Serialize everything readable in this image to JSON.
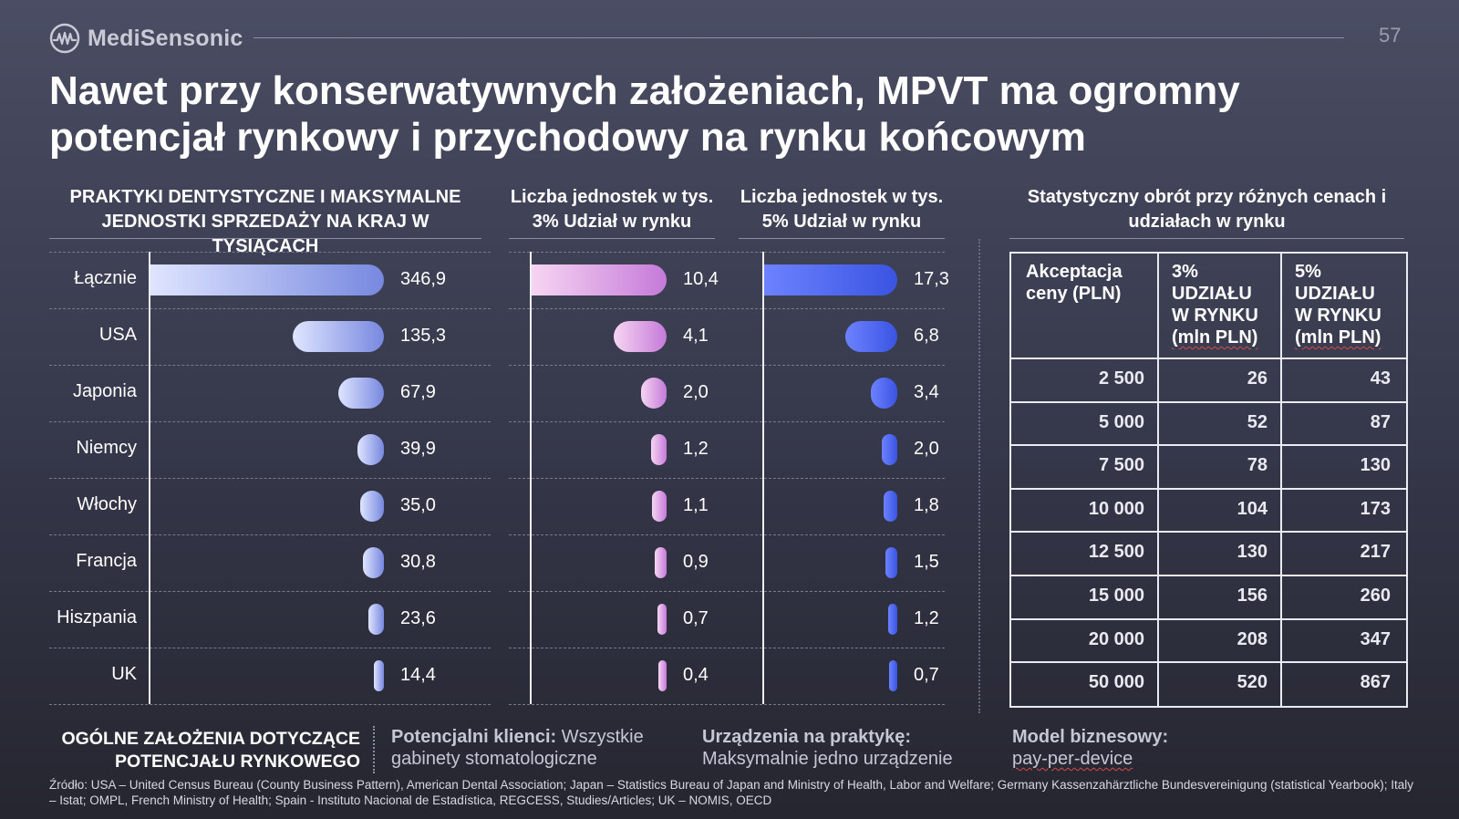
{
  "brand": {
    "name": "MediSensonic",
    "logo_icon": "ecg-circle-logo-icon"
  },
  "page_number": "57",
  "title": "Nawet przy konserwatywnych założeniach, MPVT ma ogromny potencjał rynkowy i przychodowy na rynku końcowym",
  "sections": {
    "practices_header": "PRAKTYKI DENTYSTYCZNE I MAKSYMALNE JEDNOSTKI SPRZEDAŻY NA KRAJ W TYSIĄCACH",
    "share3_header": "Liczba jednostek w tys. 3% Udział w rynku",
    "share5_header": "Liczba jednostek w tys. 5% Udział w rynku",
    "turnover_header": "Statystyczny obrót przy różnych cenach i udziałach w rynku"
  },
  "chart_data": [
    {
      "type": "bar",
      "orientation": "horizontal",
      "title": "PRAKTYKI DENTYSTYCZNE I MAKSYMALNE JEDNOSTKI SPRZEDAŻY NA KRAJ W TYSIĄCACH",
      "categories": [
        "Łącznie",
        "USA",
        "Japonia",
        "Niemcy",
        "Włochy",
        "Francja",
        "Hiszpania",
        "UK"
      ],
      "values": [
        346.9,
        135.3,
        67.9,
        39.9,
        35.0,
        30.8,
        23.6,
        14.4
      ],
      "labels": [
        "346,9",
        "135,3",
        "67,9",
        "39,9",
        "35,0",
        "30,8",
        "23,6",
        "14,4"
      ],
      "color_start": "#dfe5ff",
      "color_end": "#7788df"
    },
    {
      "type": "bar",
      "orientation": "horizontal",
      "title": "Liczba jednostek w tys. 3% Udział w rynku",
      "categories": [
        "Łącznie",
        "USA",
        "Japonia",
        "Niemcy",
        "Włochy",
        "Francja",
        "Hiszpania",
        "UK"
      ],
      "values": [
        10.4,
        4.1,
        2.0,
        1.2,
        1.1,
        0.9,
        0.7,
        0.4
      ],
      "labels": [
        "10,4",
        "4,1",
        "2,0",
        "1,2",
        "1,1",
        "0,9",
        "0,7",
        "0,4"
      ],
      "color_start": "#f6d5f2",
      "color_end": "#c57ad9"
    },
    {
      "type": "bar",
      "orientation": "horizontal",
      "title": "Liczba jednostek w tys. 5% Udział w rynku",
      "categories": [
        "Łącznie",
        "USA",
        "Japonia",
        "Niemcy",
        "Włochy",
        "Francja",
        "Hiszpania",
        "UK"
      ],
      "values": [
        17.3,
        6.8,
        3.4,
        2.0,
        1.8,
        1.5,
        1.2,
        0.7
      ],
      "labels": [
        "17,3",
        "6,8",
        "3,4",
        "2,0",
        "1,8",
        "1,5",
        "1,2",
        "0,7"
      ],
      "color_start": "#6c82ff",
      "color_end": "#3a54e2"
    },
    {
      "type": "table",
      "title": "Statystyczny obrót przy różnych cenach i udziałach w rynku",
      "columns": [
        "Akceptacja ceny (PLN)",
        "3% UDZIAŁU W RYNKU (mln PLN)",
        "5% UDZIAŁU W RYNKU (mln PLN)"
      ],
      "rows": [
        [
          "2 500",
          "26",
          "43"
        ],
        [
          "5 000",
          "52",
          "87"
        ],
        [
          "7 500",
          "78",
          "130"
        ],
        [
          "10 000",
          "104",
          "173"
        ],
        [
          "12 500",
          "130",
          "217"
        ],
        [
          "15 000",
          "156",
          "260"
        ],
        [
          "20 000",
          "208",
          "347"
        ],
        [
          "50 000",
          "520",
          "867"
        ]
      ]
    }
  ],
  "table_header": {
    "col1": [
      "Akceptacja",
      "ceny (PLN)"
    ],
    "col2": [
      "3%",
      "UDZIAŁU",
      "W RYNKU",
      "(mln PLN)"
    ],
    "col3": [
      "5%",
      "UDZIAŁU",
      "W RYNKU",
      "(mln PLN)"
    ]
  },
  "footer": {
    "assumptions_title_1": "OGÓLNE ZAŁOŻENIA DOTYCZĄCE",
    "assumptions_title_2": "POTENCJAŁU RYNKOWEGO",
    "clients_label": "Potencjalni klienci:",
    "clients_text_1": " Wszystkie",
    "clients_text_2": "gabinety stomatologiczne",
    "devices_label": "Urządzenia na praktykę:",
    "devices_text": "Maksymalnie jedno urządzenie",
    "model_label": "Model biznesowy:",
    "model_text": "pay-per-device",
    "source": "Źródło: USA – United Census Bureau (County Business Pattern), American Dental Association; Japan – Statistics Bureau of Japan and Ministry of Health, Labor and Welfare; Germany Kassenzahärztliche Bundesvereinigung (statistical Yearbook); Italy – Istat; OMPL, French Ministry of Health; Spain - Instituto Nacional de Estadística, REGCESS, Studies/Articles; UK – NOMIS, OECD"
  }
}
